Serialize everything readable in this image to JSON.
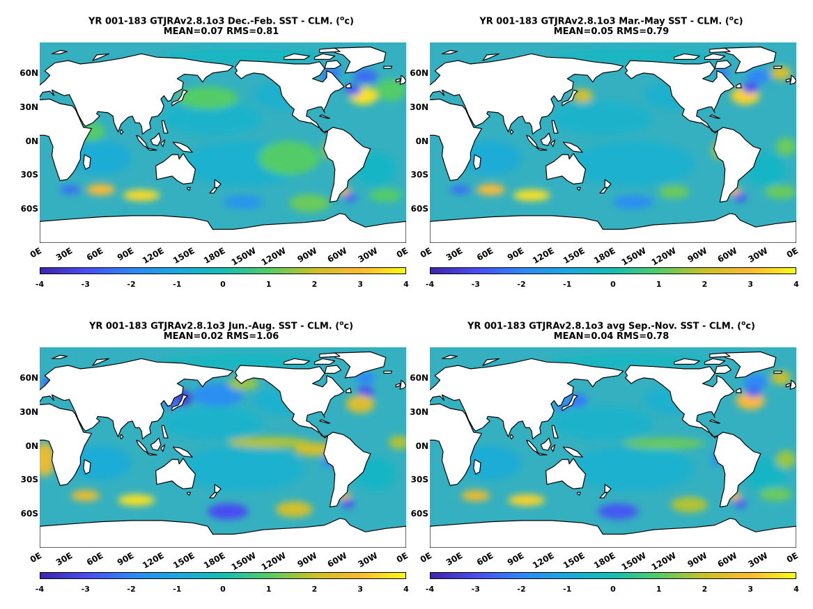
{
  "panels": [
    {
      "title_line1": "YR 001-183 GTJRAv2.8.1o3  Dec.-Feb. SST - CLM. (",
      "title_sup": "o",
      "title_end": "c)",
      "title_line2": "MEAN=0.07   RMS=0.81"
    },
    {
      "title_line1": "YR 001-183 GTJRAv2.8.1o3 Mar.-May SST - CLM. (",
      "title_sup": "o",
      "title_end": "c)",
      "title_line2": "MEAN=0.05   RMS=0.79"
    },
    {
      "title_line1": "YR 001-183 GTJRAv2.8.1o3 Jun.-Aug. SST - CLM. (",
      "title_sup": "o",
      "title_end": "c)",
      "title_line2": "MEAN=0.02   RMS=1.06"
    },
    {
      "title_line1": "YR 001-183 GTJRAv2.8.1o3 avg Sep.-Nov. SST - CLM. (",
      "title_sup": "o",
      "title_end": "c)",
      "title_line2": "MEAN=0.04   RMS=0.78"
    }
  ],
  "y_ticks": [
    "60N",
    "30N",
    "0N",
    "30S",
    "60S"
  ],
  "x_ticks": [
    "0E",
    "30E",
    "60E",
    "90E",
    "120E",
    "150E",
    "180E",
    "150W",
    "120W",
    "90W",
    "60W",
    "30W",
    "0E"
  ],
  "colorbar_ticks": [
    "-4",
    "-3",
    "-2",
    "-1",
    "0",
    "1",
    "2",
    "3",
    "4"
  ],
  "colormap": [
    "#3e26a8",
    "#4a4cf2",
    "#2e87f7",
    "#1ca8df",
    "#17beb4",
    "#53cc67",
    "#c9c129",
    "#fcb935",
    "#f9fb15"
  ],
  "colors": {
    "ocean_base": "#35b0c0",
    "land": "#ffffff",
    "coast": "#000000"
  }
}
